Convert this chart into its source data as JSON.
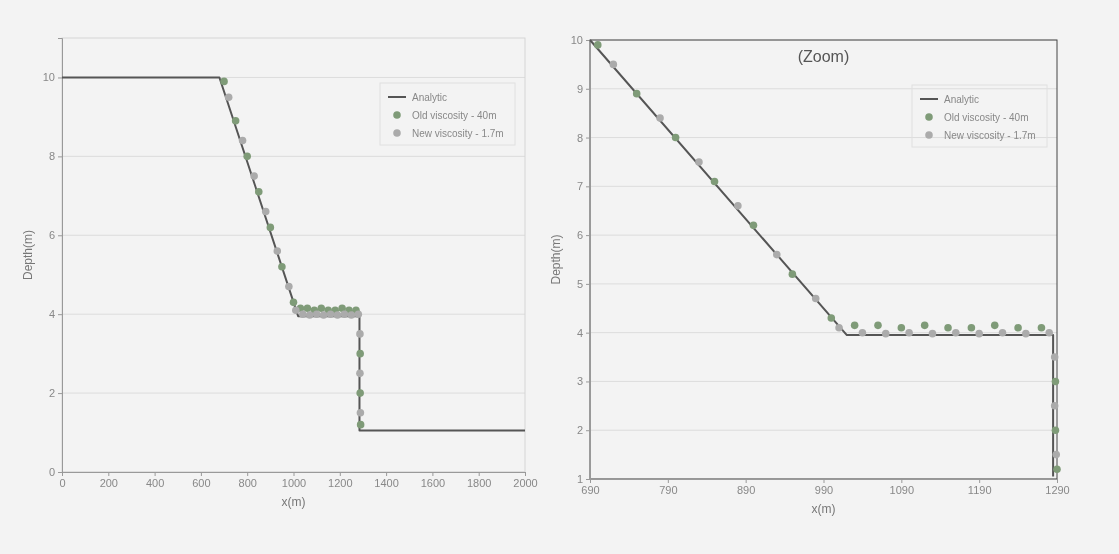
{
  "chart_data": [
    {
      "type": "line",
      "xlabel": "x(m)",
      "ylabel": "Depth(m)",
      "xlim": [
        0,
        2000
      ],
      "ylim": [
        0,
        11
      ],
      "xticks": [
        0,
        200,
        400,
        600,
        800,
        1000,
        1200,
        1400,
        1600,
        1800,
        2000
      ],
      "yticks": [
        0,
        2,
        4,
        6,
        8,
        10
      ],
      "grid": "y",
      "legend": "top right",
      "series": [
        {
          "name": "Analytic",
          "color": "#555555",
          "x": [
            0,
            680,
            1020,
            1285,
            1285,
            2000
          ],
          "values": [
            10,
            10,
            3.95,
            3.95,
            1.05,
            1.05
          ]
        },
        {
          "name": "Old viscosity - 40m",
          "type": "scatter",
          "color": "#7f9b78",
          "x": [
            700,
            750,
            800,
            850,
            900,
            950,
            1000,
            1030,
            1060,
            1090,
            1120,
            1150,
            1180,
            1210,
            1240,
            1270,
            1288,
            1288,
            1290
          ],
          "values": [
            9.9,
            8.9,
            8,
            7.1,
            6.2,
            5.2,
            4.3,
            4.15,
            4.15,
            4.1,
            4.15,
            4.1,
            4.1,
            4.15,
            4.1,
            4.1,
            3,
            2,
            1.2
          ]
        },
        {
          "name": "New viscosity - 1.7m",
          "type": "scatter",
          "color": "#ababab",
          "x": [
            720,
            780,
            830,
            880,
            930,
            980,
            1010,
            1040,
            1070,
            1100,
            1130,
            1160,
            1190,
            1220,
            1250,
            1280,
            1287,
            1287,
            1289
          ],
          "values": [
            9.5,
            8.4,
            7.5,
            6.6,
            5.6,
            4.7,
            4.1,
            4,
            3.98,
            4,
            3.98,
            4,
            3.98,
            4,
            3.98,
            4,
            3.5,
            2.5,
            1.5
          ]
        }
      ]
    },
    {
      "type": "line",
      "title": "(Zoom)",
      "xlabel": "x(m)",
      "ylabel": "Depth(m)",
      "xlim": [
        690,
        1290
      ],
      "ylim": [
        1,
        10
      ],
      "xticks": [
        690,
        790,
        890,
        990,
        1090,
        1190,
        1290
      ],
      "yticks": [
        1,
        2,
        3,
        4,
        5,
        6,
        7,
        8,
        9,
        10
      ],
      "grid": "y",
      "legend": "top right",
      "series": [
        {
          "name": "Analytic",
          "color": "#555555",
          "x": [
            690,
            1020,
            1285,
            1285
          ],
          "values": [
            10,
            3.95,
            3.95,
            1.05
          ]
        },
        {
          "name": "Old viscosity - 40m",
          "type": "scatter",
          "color": "#7f9b78",
          "x": [
            700,
            750,
            800,
            850,
            900,
            950,
            1000,
            1030,
            1060,
            1090,
            1120,
            1150,
            1180,
            1210,
            1240,
            1270,
            1288,
            1288,
            1290
          ],
          "values": [
            9.9,
            8.9,
            8,
            7.1,
            6.2,
            5.2,
            4.3,
            4.15,
            4.15,
            4.1,
            4.15,
            4.1,
            4.1,
            4.15,
            4.1,
            4.1,
            3,
            2,
            1.2
          ]
        },
        {
          "name": "New viscosity - 1.7m",
          "type": "scatter",
          "color": "#ababab",
          "x": [
            720,
            780,
            830,
            880,
            930,
            980,
            1010,
            1040,
            1070,
            1100,
            1130,
            1160,
            1190,
            1220,
            1250,
            1280,
            1287,
            1287,
            1289
          ],
          "values": [
            9.5,
            8.4,
            7.5,
            6.6,
            5.6,
            4.7,
            4.1,
            4,
            3.98,
            4,
            3.98,
            4,
            3.98,
            4,
            3.98,
            4,
            3.5,
            2.5,
            1.5
          ]
        }
      ]
    }
  ]
}
